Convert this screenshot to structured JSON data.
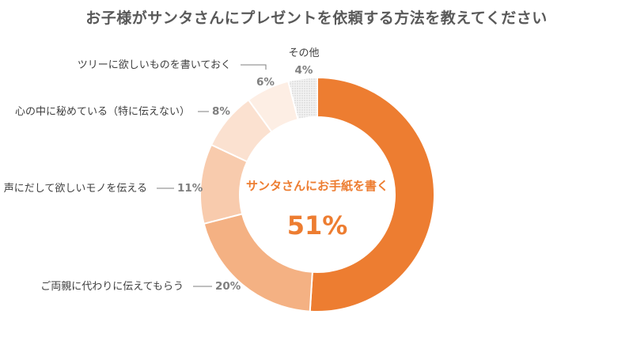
{
  "chart_data": {
    "type": "pie",
    "title": "お子様がサンタさんにプレゼントを依頼する方法を教えてください",
    "slices": [
      {
        "label": "サンタさんにお手紙を書く",
        "value": 51,
        "value_label": "51%",
        "color": "#ED7D31"
      },
      {
        "label": "ご両親に代わりに伝えてもらう",
        "value": 20,
        "value_label": "20%",
        "color": "#F4B183"
      },
      {
        "label": "声にだして欲しいモノを伝える",
        "value": 11,
        "value_label": "11%",
        "color": "#F8CBAD"
      },
      {
        "label": "心の中に秘めている（特に伝えない）",
        "value": 8,
        "value_label": "8%",
        "color": "#FBE1D0"
      },
      {
        "label": "ツリーに欲しいものを書いておく",
        "value": 6,
        "value_label": "6%",
        "color": "#FDEEE4"
      },
      {
        "label": "その他",
        "value": 4,
        "value_label": "4%",
        "color": "#EDEDED"
      }
    ],
    "donut": true,
    "start": "12 o'clock, clockwise",
    "center_slice": "サンタさんにお手紙を書く"
  }
}
